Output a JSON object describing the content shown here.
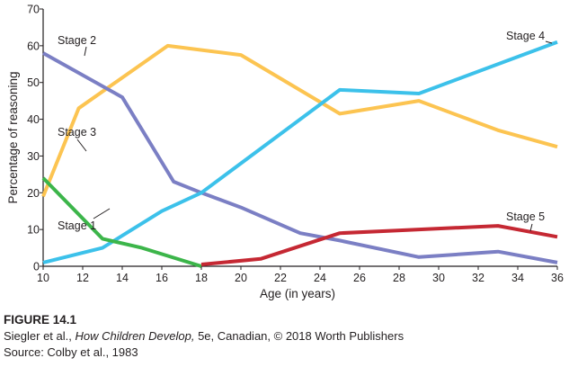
{
  "chart_data": {
    "type": "line",
    "xlabel": "Age (in years)",
    "ylabel": "Percentage of reasoning",
    "xlim": [
      10,
      36
    ],
    "ylim": [
      0,
      70
    ],
    "xticks": [
      10,
      12,
      14,
      16,
      18,
      20,
      22,
      24,
      26,
      28,
      30,
      32,
      34,
      36
    ],
    "yticks": [
      0,
      10,
      20,
      30,
      40,
      50,
      60,
      70
    ],
    "grid": false,
    "legend": "inline labels",
    "series": [
      {
        "name": "Stage 1",
        "color": "#3cb54a",
        "points": [
          [
            10,
            24
          ],
          [
            13,
            7.5
          ],
          [
            15,
            5
          ],
          [
            18,
            0
          ]
        ]
      },
      {
        "name": "Stage 2",
        "color": "#7b7fc4",
        "points": [
          [
            10,
            58
          ],
          [
            14,
            46
          ],
          [
            16.6,
            23
          ],
          [
            18,
            20
          ],
          [
            20,
            16
          ],
          [
            23,
            9
          ],
          [
            25,
            7
          ],
          [
            29,
            2.5
          ],
          [
            33,
            4
          ],
          [
            36,
            1
          ]
        ]
      },
      {
        "name": "Stage 3",
        "color": "#fcc451",
        "points": [
          [
            10,
            19
          ],
          [
            11.8,
            43
          ],
          [
            16.3,
            60
          ],
          [
            20,
            57.5
          ],
          [
            25,
            41.5
          ],
          [
            29,
            45
          ],
          [
            33,
            37
          ],
          [
            36,
            32.5
          ]
        ]
      },
      {
        "name": "Stage 4",
        "color": "#3cc1ea",
        "points": [
          [
            10,
            1
          ],
          [
            13,
            5
          ],
          [
            16,
            15
          ],
          [
            18,
            20
          ],
          [
            20,
            28
          ],
          [
            25,
            48
          ],
          [
            29,
            47
          ],
          [
            36,
            61
          ]
        ]
      },
      {
        "name": "Stage 5",
        "color": "#c52833",
        "points": [
          [
            18,
            0.5
          ],
          [
            21,
            2
          ],
          [
            25,
            9
          ],
          [
            33,
            11
          ],
          [
            36,
            8
          ]
        ]
      }
    ]
  },
  "caption": {
    "figure_title": "FIGURE 14.1",
    "credit_prefix": "Siegler et al., ",
    "credit_book": "How Children Develop,",
    "credit_suffix": " 5e, Canadian, © 2018 Worth Publishers",
    "source": "Source: Colby et al., 1983"
  }
}
